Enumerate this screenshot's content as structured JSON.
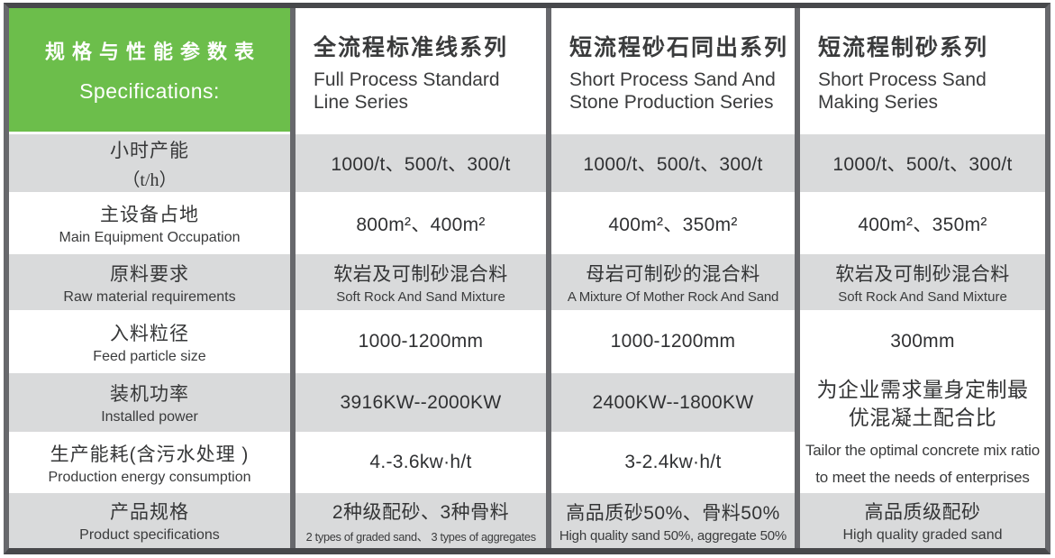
{
  "table": {
    "corner": {
      "title_zh": "规格与性能参数表",
      "title_en": "Specifications:"
    },
    "accent_green": "#6cbe4b",
    "row_gray": "#d9dadb",
    "columns": [
      {
        "zh": "全流程标准线系列",
        "en": "Full Process Standard\nLine Series"
      },
      {
        "zh": "短流程砂石同出系列",
        "en": "Short Process Sand And\nStone Production Series"
      },
      {
        "zh": "短流程制砂系列",
        "en": "Short Process Sand\nMaking Series"
      }
    ],
    "rows": [
      {
        "label": {
          "zh": "小时产能",
          "sub": "（t/h）"
        },
        "cells": [
          {
            "text": "1000/t、500/t、300/t"
          },
          {
            "text": "1000/t、500/t、300/t"
          },
          {
            "text": "1000/t、500/t、300/t"
          }
        ]
      },
      {
        "label": {
          "zh": "主设备占地",
          "en": "Main Equipment Occupation"
        },
        "cells": [
          {
            "text": "800m²、400m²"
          },
          {
            "text": "400m²、350m²"
          },
          {
            "text": "400m²、350m²"
          }
        ]
      },
      {
        "label": {
          "zh": "原料要求",
          "en": "Raw material requirements"
        },
        "cells": [
          {
            "zh": "软岩及可制砂混合料",
            "en": "Soft Rock And Sand Mixture"
          },
          {
            "zh": "母岩可制砂的混合料",
            "en": "A Mixture Of Mother Rock And Sand"
          },
          {
            "zh": "软岩及可制砂混合料",
            "en": "Soft Rock And Sand Mixture"
          }
        ]
      },
      {
        "label": {
          "zh": "入料粒径",
          "en": "Feed particle size"
        },
        "cells": [
          {
            "text": "1000-1200mm"
          },
          {
            "text": "1000-1200mm"
          },
          {
            "text": "300mm"
          }
        ]
      },
      {
        "label": {
          "zh": "装机功率",
          "en": "Installed power"
        },
        "cells": [
          {
            "text": "3916KW--2000KW"
          },
          {
            "text": "2400KW--1800KW"
          }
        ]
      },
      {
        "label": {
          "zh": "生产能耗(含污水处理 )",
          "en": "Production energy consumption"
        },
        "cells": [
          {
            "text": "4.-3.6kw·h/t"
          },
          {
            "text": "3-2.4kw·h/t"
          }
        ]
      },
      {
        "label": {
          "zh": "产品规格",
          "en": "Product specifications"
        },
        "cells": [
          {
            "zh": "2种级配砂、3种骨料",
            "en": "2 types of graded sand、 3 types of aggregates"
          },
          {
            "zh": "高品质砂50%、骨料50%",
            "en": "High quality sand 50%, aggregate 50%"
          },
          {
            "zh": "高品质级配砂",
            "en": "High quality graded sand"
          }
        ]
      }
    ],
    "merged": {
      "zh": "为企业需求量身定制最\n优混凝土配合比",
      "en": "Tailor the optimal concrete mix ratio\nto meet the needs of enterprises"
    }
  }
}
